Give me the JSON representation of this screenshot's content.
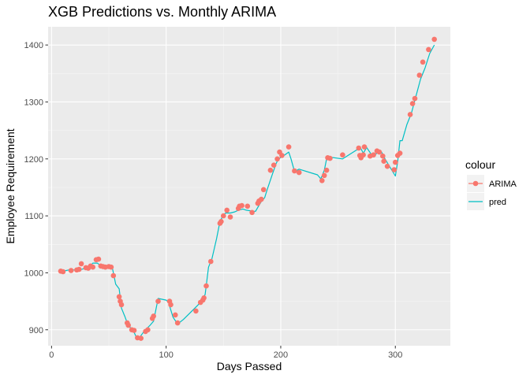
{
  "chart_data": {
    "type": "line",
    "title": "XGB Predictions vs. Monthly ARIMA",
    "xlabel": "Days Passed",
    "ylabel": "Employee Requirement",
    "xlim": [
      -3,
      348
    ],
    "ylim": [
      872,
      1432
    ],
    "x_ticks": [
      0,
      100,
      200,
      300
    ],
    "y_ticks": [
      900,
      1000,
      1100,
      1200,
      1300,
      1400
    ],
    "grid": true,
    "legend": {
      "title": "colour",
      "position": "right",
      "entries": [
        {
          "name": "ARIMA",
          "color": "#F8766D",
          "style": "point-line"
        },
        {
          "name": "pred",
          "color": "#00BFC4",
          "style": "line"
        }
      ]
    },
    "series": [
      {
        "name": "pred",
        "kind": "line",
        "color": "#00BFC4",
        "points": [
          [
            8,
            1002
          ],
          [
            15,
            1005
          ],
          [
            22,
            1005
          ],
          [
            26,
            1006
          ],
          [
            30,
            1008
          ],
          [
            33,
            1010
          ],
          [
            36,
            1017
          ],
          [
            40,
            1017
          ],
          [
            43,
            1012
          ],
          [
            47,
            1012
          ],
          [
            51,
            1011
          ],
          [
            53,
            1009
          ],
          [
            56,
            980
          ],
          [
            59,
            972
          ],
          [
            61,
            938
          ],
          [
            64,
            923
          ],
          [
            66,
            912
          ],
          [
            68,
            905
          ],
          [
            71,
            900
          ],
          [
            74,
            887
          ],
          [
            77,
            887
          ],
          [
            81,
            898
          ],
          [
            86,
            908
          ],
          [
            89,
            915
          ],
          [
            93,
            955
          ],
          [
            100,
            952
          ],
          [
            102,
            948
          ],
          [
            106,
            922
          ],
          [
            110,
            910
          ],
          [
            115,
            918
          ],
          [
            121,
            930
          ],
          [
            127,
            942
          ],
          [
            130,
            948
          ],
          [
            134,
            962
          ],
          [
            137,
            1010
          ],
          [
            140,
            1025
          ],
          [
            144,
            1060
          ],
          [
            147,
            1090
          ],
          [
            150,
            1102
          ],
          [
            152,
            1105
          ],
          [
            156,
            1105
          ],
          [
            160,
            1107
          ],
          [
            163,
            1110
          ],
          [
            167,
            1112
          ],
          [
            170,
            1110
          ],
          [
            176,
            1108
          ],
          [
            178,
            1108
          ],
          [
            180,
            1115
          ],
          [
            183,
            1125
          ],
          [
            186,
            1132
          ],
          [
            188,
            1145
          ],
          [
            193,
            1175
          ],
          [
            196,
            1192
          ],
          [
            198,
            1200
          ],
          [
            202,
            1205
          ],
          [
            207,
            1212
          ],
          [
            209,
            1200
          ],
          [
            212,
            1178
          ],
          [
            216,
            1182
          ],
          [
            232,
            1172
          ],
          [
            235,
            1165
          ],
          [
            238,
            1180
          ],
          [
            240,
            1200
          ],
          [
            243,
            1203
          ],
          [
            254,
            1200
          ],
          [
            268,
            1218
          ],
          [
            270,
            1218
          ],
          [
            272,
            1210
          ],
          [
            275,
            1220
          ],
          [
            280,
            1205
          ],
          [
            284,
            1210
          ],
          [
            288,
            1212
          ],
          [
            291,
            1200
          ],
          [
            294,
            1190
          ],
          [
            300,
            1170
          ],
          [
            302,
            1195
          ],
          [
            304,
            1232
          ],
          [
            306,
            1232
          ],
          [
            310,
            1260
          ],
          [
            314,
            1280
          ],
          [
            318,
            1310
          ],
          [
            322,
            1340
          ],
          [
            326,
            1360
          ],
          [
            330,
            1385
          ],
          [
            334,
            1400
          ]
        ]
      },
      {
        "name": "ARIMA",
        "kind": "points",
        "color": "#F8766D",
        "points": [
          [
            8,
            1003
          ],
          [
            10,
            1002
          ],
          [
            17,
            1004
          ],
          [
            22,
            1005
          ],
          [
            24,
            1006
          ],
          [
            26,
            1016
          ],
          [
            30,
            1009
          ],
          [
            32,
            1008
          ],
          [
            34,
            1012
          ],
          [
            36,
            1010
          ],
          [
            39,
            1023
          ],
          [
            41,
            1024
          ],
          [
            43,
            1012
          ],
          [
            45,
            1011
          ],
          [
            47,
            1010
          ],
          [
            50,
            1011
          ],
          [
            52,
            1010
          ],
          [
            54,
            995
          ],
          [
            59,
            958
          ],
          [
            60,
            950
          ],
          [
            61,
            944
          ],
          [
            66,
            912
          ],
          [
            67,
            908
          ],
          [
            70,
            900
          ],
          [
            72,
            899
          ],
          [
            75,
            886
          ],
          [
            78,
            885
          ],
          [
            82,
            897
          ],
          [
            84,
            900
          ],
          [
            88,
            920
          ],
          [
            89,
            924
          ],
          [
            93,
            950
          ],
          [
            103,
            950
          ],
          [
            104,
            944
          ],
          [
            108,
            926
          ],
          [
            110,
            912
          ],
          [
            126,
            933
          ],
          [
            130,
            948
          ],
          [
            132,
            952
          ],
          [
            133,
            956
          ],
          [
            135,
            977
          ],
          [
            139,
            1020
          ],
          [
            147,
            1087
          ],
          [
            148,
            1090
          ],
          [
            150,
            1100
          ],
          [
            153,
            1110
          ],
          [
            156,
            1098
          ],
          [
            163,
            1113
          ],
          [
            164,
            1117
          ],
          [
            166,
            1118
          ],
          [
            171,
            1117
          ],
          [
            175,
            1106
          ],
          [
            180,
            1122
          ],
          [
            181,
            1126
          ],
          [
            183,
            1129
          ],
          [
            185,
            1146
          ],
          [
            191,
            1180
          ],
          [
            194,
            1189
          ],
          [
            197,
            1200
          ],
          [
            199,
            1212
          ],
          [
            201,
            1206
          ],
          [
            207,
            1221
          ],
          [
            212,
            1179
          ],
          [
            216,
            1176
          ],
          [
            236,
            1162
          ],
          [
            238,
            1171
          ],
          [
            240,
            1180
          ],
          [
            241,
            1202
          ],
          [
            243,
            1201
          ],
          [
            254,
            1207
          ],
          [
            268,
            1219
          ],
          [
            269,
            1206
          ],
          [
            270,
            1202
          ],
          [
            272,
            1207
          ],
          [
            273,
            1221
          ],
          [
            278,
            1205
          ],
          [
            281,
            1207
          ],
          [
            284,
            1214
          ],
          [
            286,
            1212
          ],
          [
            289,
            1205
          ],
          [
            290,
            1196
          ],
          [
            293,
            1187
          ],
          [
            299,
            1181
          ],
          [
            300,
            1194
          ],
          [
            302,
            1206
          ],
          [
            304,
            1210
          ],
          [
            313,
            1278
          ],
          [
            315,
            1297
          ],
          [
            317,
            1306
          ],
          [
            321,
            1347
          ],
          [
            324,
            1370
          ],
          [
            329,
            1392
          ],
          [
            334,
            1410
          ]
        ]
      }
    ]
  }
}
